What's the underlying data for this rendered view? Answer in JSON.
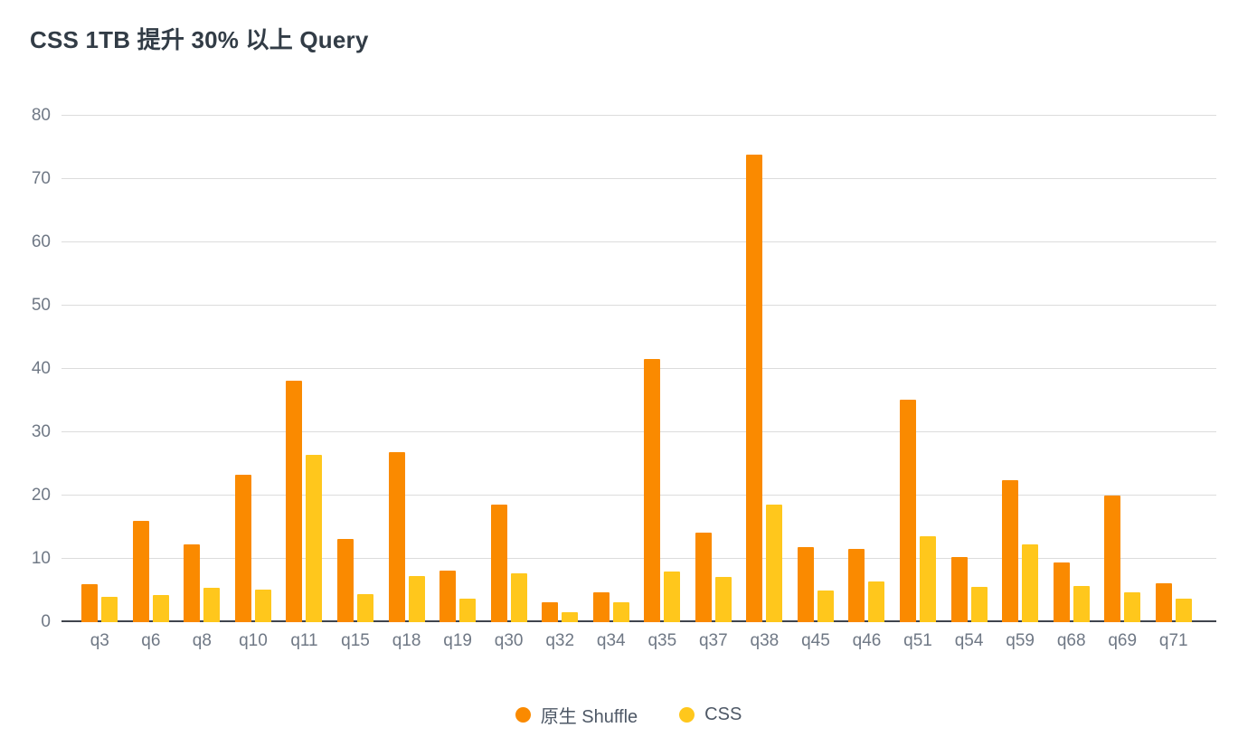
{
  "title": "CSS 1TB 提升 30% 以上 Query",
  "colors": {
    "title_text": "#323C46",
    "axis_label_text": "#6F7885",
    "legend_text": "#4E5866",
    "gridline": "#DCDCDC",
    "axis_line": "#40454D",
    "background": "#FFFFFF"
  },
  "chart_data": {
    "type": "bar",
    "title": "CSS 1TB 提升 30% 以上 Query",
    "xlabel": "",
    "ylabel": "",
    "ylim": [
      0,
      80
    ],
    "yticks": [
      0,
      10,
      20,
      30,
      40,
      50,
      60,
      70,
      80
    ],
    "grid": true,
    "legend_position": "bottom",
    "categories": [
      "q3",
      "q6",
      "q8",
      "q10",
      "q11",
      "q15",
      "q18",
      "q19",
      "q30",
      "q32",
      "q34",
      "q35",
      "q37",
      "q38",
      "q45",
      "q46",
      "q51",
      "q54",
      "q59",
      "q68",
      "q69",
      "q71"
    ],
    "series": [
      {
        "name": "原生 Shuffle",
        "slug": "native-shuffle",
        "color": "#FA8A00",
        "values": [
          6.0,
          16.0,
          12.3,
          23.3,
          38.1,
          13.2,
          26.8,
          8.1,
          18.6,
          3.2,
          4.7,
          41.6,
          14.2,
          73.8,
          11.9,
          11.6,
          35.2,
          10.3,
          22.5,
          9.4,
          20.0,
          6.2
        ]
      },
      {
        "name": "CSS",
        "slug": "css",
        "color": "#FFC71C",
        "values": [
          4.0,
          4.3,
          5.4,
          5.2,
          26.5,
          4.5,
          7.3,
          3.7,
          7.7,
          1.6,
          3.2,
          8.0,
          7.1,
          18.6,
          5.0,
          6.5,
          13.6,
          5.6,
          12.3,
          5.7,
          4.7,
          3.7
        ]
      }
    ]
  }
}
